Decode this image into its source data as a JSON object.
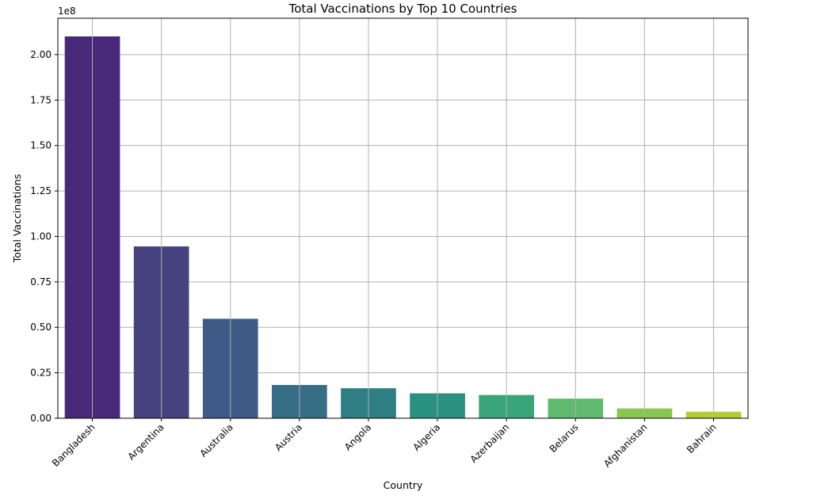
{
  "chart_data": {
    "type": "bar",
    "title": "Total Vaccinations by Top 10 Countries",
    "xlabel": "Country",
    "ylabel": "Total Vaccinations",
    "y_scale_label": "1e8",
    "categories": [
      "Bangladesh",
      "Argentina",
      "Australia",
      "Austria",
      "Angola",
      "Algeria",
      "Azerbaijan",
      "Belarus",
      "Afghanistan",
      "Bahrain"
    ],
    "values": [
      210000000,
      94500000,
      54700000,
      18300000,
      16500000,
      13700000,
      12800000,
      10800000,
      5400000,
      3600000
    ],
    "colors": [
      "#482878",
      "#46427f",
      "#3e5a86",
      "#366e85",
      "#2e7e83",
      "#2a9080",
      "#3ba57a",
      "#5fb96e",
      "#8bc653",
      "#b5cd35"
    ],
    "ylim": [
      0,
      220000000
    ],
    "yticks": [
      0,
      25000000,
      50000000,
      75000000,
      100000000,
      125000000,
      150000000,
      175000000,
      200000000
    ],
    "ytick_labels": [
      "0.00",
      "0.25",
      "0.50",
      "0.75",
      "1.00",
      "1.25",
      "1.50",
      "1.75",
      "2.00"
    ],
    "grid": true,
    "legend": "none"
  }
}
